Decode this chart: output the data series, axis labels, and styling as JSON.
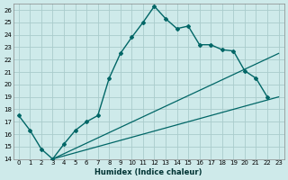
{
  "xlabel": "Humidex (Indice chaleur)",
  "bg_color": "#ceeaea",
  "grid_color": "#aacccc",
  "line_color": "#006666",
  "xlim": [
    -0.5,
    23.5
  ],
  "ylim": [
    14,
    26.5
  ],
  "xticks": [
    0,
    1,
    2,
    3,
    4,
    5,
    6,
    7,
    8,
    9,
    10,
    11,
    12,
    13,
    14,
    15,
    16,
    17,
    18,
    19,
    20,
    21,
    22,
    23
  ],
  "yticks": [
    14,
    15,
    16,
    17,
    18,
    19,
    20,
    21,
    22,
    23,
    24,
    25,
    26
  ],
  "main_x": [
    0,
    1,
    2,
    3,
    4,
    5,
    6,
    7,
    8,
    9,
    10,
    11,
    12,
    13,
    14,
    15,
    16,
    17,
    18,
    19,
    20,
    21,
    22
  ],
  "main_y": [
    17.5,
    16.3,
    14.8,
    14.0,
    15.2,
    16.3,
    17.0,
    17.5,
    20.5,
    22.5,
    23.8,
    25.0,
    26.3,
    25.3,
    24.5,
    24.7,
    23.2,
    23.2,
    22.8,
    22.7,
    21.1,
    20.5,
    19.0
  ],
  "line1_x": [
    3,
    23
  ],
  "line1_y": [
    14.0,
    19.0
  ],
  "line2_x": [
    3,
    23
  ],
  "line2_y": [
    14.0,
    22.5
  ]
}
